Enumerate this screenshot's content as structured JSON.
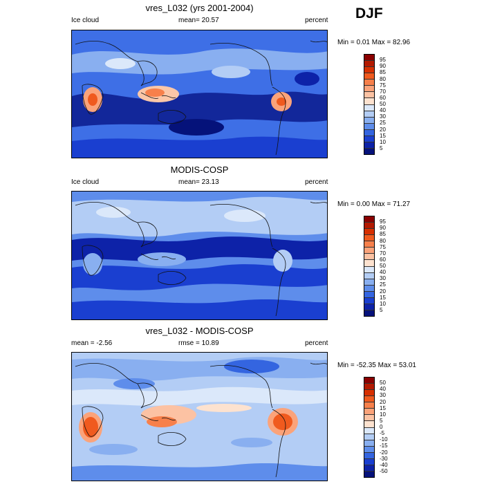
{
  "season": "DJF",
  "panels": [
    {
      "title": "vres_L032 (yrs 2001-2004)",
      "left_label": "Ice cloud",
      "center_label": "mean=  20.57",
      "right_label": "percent",
      "minmax": "Min =   0.01 Max =  82.96",
      "colorbar_ticks": [
        "95",
        "90",
        "85",
        "80",
        "75",
        "70",
        "60",
        "50",
        "40",
        "30",
        "25",
        "20",
        "15",
        "10",
        "5"
      ],
      "colorbar_colors": [
        "#8b0000",
        "#b31a00",
        "#d73000",
        "#f05a1e",
        "#f7804b",
        "#fba37a",
        "#fcc2a3",
        "#fde2cf",
        "#dbe8fa",
        "#b3cdf5",
        "#89aff0",
        "#5e8deb",
        "#3465e0",
        "#1a3fd0",
        "#0d22a8",
        "#05127a"
      ]
    },
    {
      "title": "MODIS-COSP",
      "left_label": "Ice cloud",
      "center_label": "mean=  23.13",
      "right_label": "percent",
      "minmax": "Min =   0.00 Max =  71.27",
      "colorbar_ticks": [
        "95",
        "90",
        "85",
        "80",
        "75",
        "70",
        "60",
        "50",
        "40",
        "30",
        "25",
        "20",
        "15",
        "10",
        "5"
      ],
      "colorbar_colors": [
        "#8b0000",
        "#b31a00",
        "#d73000",
        "#f05a1e",
        "#f7804b",
        "#fba37a",
        "#fcc2a3",
        "#fde2cf",
        "#dbe8fa",
        "#b3cdf5",
        "#89aff0",
        "#5e8deb",
        "#3465e0",
        "#1a3fd0",
        "#0d22a8",
        "#05127a"
      ]
    },
    {
      "title": "vres_L032 - MODIS-COSP",
      "left_label": "mean =  -2.56",
      "center_label": "rmse =  10.89",
      "right_label": "percent",
      "minmax": "Min = -52.35 Max =  53.01",
      "colorbar_ticks": [
        "50",
        "40",
        "30",
        "20",
        "15",
        "10",
        "5",
        "0",
        "-5",
        "-10",
        "-15",
        "-20",
        "-30",
        "-40",
        "-50"
      ],
      "colorbar_colors": [
        "#8b0000",
        "#b31a00",
        "#d73000",
        "#f05a1e",
        "#f7804b",
        "#fba37a",
        "#fcc2a3",
        "#fde2cf",
        "#dbe8fa",
        "#b3cdf5",
        "#89aff0",
        "#5e8deb",
        "#3465e0",
        "#1a3fd0",
        "#0d22a8",
        "#05127a"
      ]
    }
  ]
}
